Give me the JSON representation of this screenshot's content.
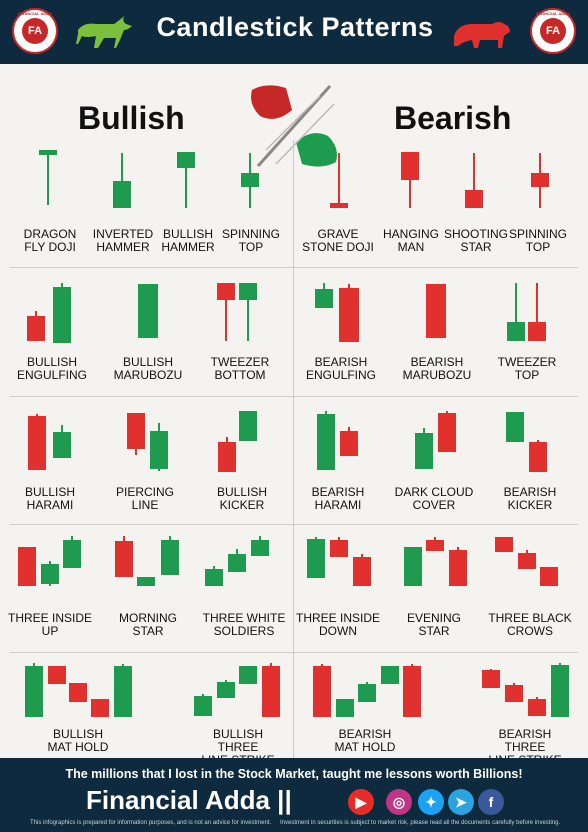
{
  "header": {
    "title": "Candlestick Patterns",
    "logo_text": "FA",
    "logo_ring": "FINANCIAL ADDA"
  },
  "sections": {
    "bullish": "Bullish",
    "bearish": "Bearish"
  },
  "colors": {
    "bull": "#1e9b4f",
    "bear": "#e0312f",
    "header_bg": "#0d2a3e"
  },
  "patterns": [
    {
      "id": "dragonfly-doji",
      "line1": "DRAGON",
      "line2": "FLY DOJI"
    },
    {
      "id": "inverted-hammer",
      "line1": "INVERTED",
      "line2": "HAMMER"
    },
    {
      "id": "bullish-hammer",
      "line1": "BULLISH",
      "line2": "HAMMER"
    },
    {
      "id": "spinning-top-bull",
      "line1": "SPINNING",
      "line2": "TOP"
    },
    {
      "id": "gravestone-doji",
      "line1": "GRAVE",
      "line2": "STONE DOJI"
    },
    {
      "id": "hanging-man",
      "line1": "HANGING",
      "line2": "MAN"
    },
    {
      "id": "shooting-star",
      "line1": "SHOOTING",
      "line2": "STAR"
    },
    {
      "id": "spinning-top-bear",
      "line1": "SPINNING",
      "line2": "TOP"
    },
    {
      "id": "bullish-engulfing",
      "line1": "BULLISH",
      "line2": "ENGULFING"
    },
    {
      "id": "bullish-marubozu",
      "line1": "BULLISH",
      "line2": "MARUBOZU"
    },
    {
      "id": "tweezer-bottom",
      "line1": "TWEEZER",
      "line2": "BOTTOM"
    },
    {
      "id": "bearish-engulfing",
      "line1": "BEARISH",
      "line2": "ENGULFING"
    },
    {
      "id": "bearish-marubozu",
      "line1": "BEARISH",
      "line2": "MARUBOZU"
    },
    {
      "id": "tweezer-top",
      "line1": "TWEEZER",
      "line2": "TOP"
    },
    {
      "id": "bullish-harami",
      "line1": "BULLISH",
      "line2": "HARAMI"
    },
    {
      "id": "piercing-line",
      "line1": "PIERCING",
      "line2": "LINE"
    },
    {
      "id": "bullish-kicker",
      "line1": "BULLISH",
      "line2": "KICKER"
    },
    {
      "id": "bearish-harami",
      "line1": "BEARISH",
      "line2": "HARAMI"
    },
    {
      "id": "dark-cloud-cover",
      "line1": "DARK CLOUD",
      "line2": "COVER"
    },
    {
      "id": "bearish-kicker",
      "line1": "BEARISH",
      "line2": "KICKER"
    },
    {
      "id": "three-inside-up",
      "line1": "THREE INSIDE",
      "line2": "UP"
    },
    {
      "id": "morning-star",
      "line1": "MORNING",
      "line2": "STAR"
    },
    {
      "id": "three-white-soldiers",
      "line1": "THREE WHITE",
      "line2": "SOLDIERS"
    },
    {
      "id": "three-inside-down",
      "line1": "THREE INSIDE",
      "line2": "DOWN"
    },
    {
      "id": "evening-star",
      "line1": "EVENING",
      "line2": "STAR"
    },
    {
      "id": "three-black-crows",
      "line1": "THREE BLACK",
      "line2": "CROWS"
    },
    {
      "id": "bullish-mat-hold",
      "line1": "BULLISH",
      "line2": "MAT HOLD"
    },
    {
      "id": "bullish-three-line-strike",
      "line1": "BULLISH THREE",
      "line2": "LINE STRIKE"
    },
    {
      "id": "bearish-mat-hold",
      "line1": "BEARISH",
      "line2": "MAT HOLD"
    },
    {
      "id": "bearish-three-line-strike",
      "line1": "BEARISH THREE",
      "line2": "LINE STRIKE"
    }
  ],
  "footer": {
    "tagline": "The millions that I lost in the Stock Market, taught me lessons worth Billions!",
    "brand": "Financial Adda ||",
    "disclaimer_left": "This infographics is prepared for information purposes, and is not an advice for investment.",
    "disclaimer_right": "Investment in securities is subject to market risk, please read all the documents carefully before investing.",
    "social": [
      "youtube-icon",
      "instagram-icon",
      "twitter-icon",
      "telegram-icon",
      "facebook-icon"
    ]
  }
}
